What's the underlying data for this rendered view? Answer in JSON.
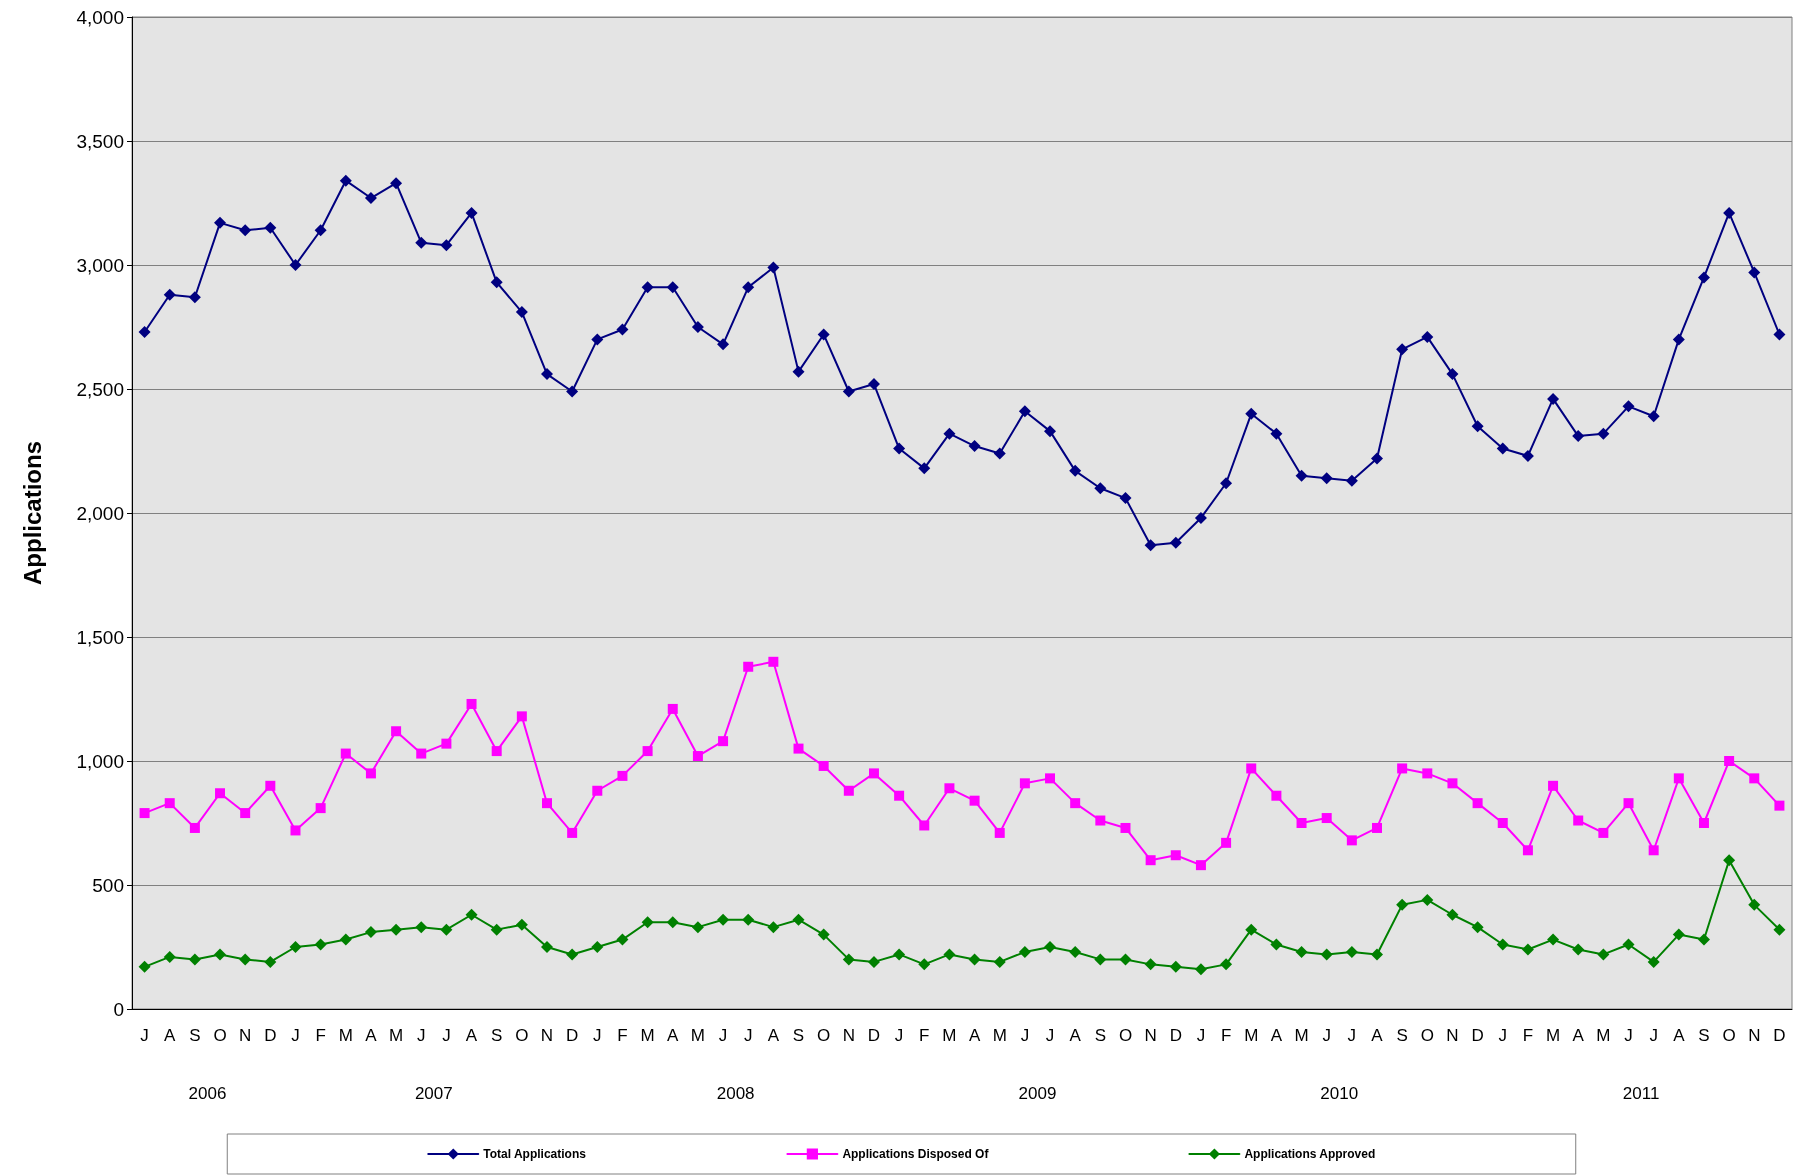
{
  "chart_data": {
    "type": "line",
    "ylabel": "Applications",
    "categories": [
      "J",
      "A",
      "S",
      "O",
      "N",
      "D",
      "J",
      "F",
      "M",
      "A",
      "M",
      "J",
      "J",
      "A",
      "S",
      "O",
      "N",
      "D",
      "J",
      "F",
      "M",
      "A",
      "M",
      "J",
      "J",
      "A",
      "S",
      "O",
      "N",
      "D",
      "J",
      "F",
      "M",
      "A",
      "M",
      "J",
      "J",
      "A",
      "S",
      "O",
      "N",
      "D",
      "J",
      "F",
      "M",
      "A",
      "M",
      "J",
      "J",
      "A",
      "S",
      "O",
      "N",
      "D",
      "J",
      "F",
      "M",
      "A",
      "M",
      "J",
      "J",
      "A",
      "S",
      "O",
      "N",
      "D"
    ],
    "annotations": [
      "2006",
      "2007",
      "2008",
      "2009",
      "2010",
      "2011"
    ],
    "series": [
      {
        "name": "Total Applications",
        "color": "#000080",
        "marker": "diamond",
        "values": [
          2730,
          2880,
          2870,
          3170,
          3140,
          3150,
          3000,
          3140,
          3340,
          3270,
          3330,
          3090,
          3080,
          3210,
          2930,
          2810,
          2560,
          2490,
          2700,
          2740,
          2910,
          2910,
          2750,
          2680,
          2910,
          2990,
          2570,
          2720,
          2490,
          2520,
          2260,
          2180,
          2320,
          2270,
          2240,
          2410,
          2330,
          2170,
          2100,
          2060,
          1870,
          1880,
          1980,
          2120,
          2400,
          2320,
          2150,
          2140,
          2130,
          2220,
          2660,
          2710,
          2560,
          2350,
          2260,
          2230,
          2460,
          2310,
          2320,
          2430,
          2390,
          2700,
          2950,
          3210,
          2970,
          2720
        ]
      },
      {
        "name": "Applications Disposed Of",
        "color": "#ff00ff",
        "marker": "square",
        "values": [
          790,
          830,
          730,
          870,
          790,
          900,
          720,
          810,
          1030,
          950,
          1120,
          1030,
          1070,
          1230,
          1040,
          1180,
          830,
          710,
          880,
          940,
          1040,
          1210,
          1020,
          1080,
          1380,
          1400,
          1050,
          980,
          880,
          950,
          860,
          740,
          890,
          840,
          710,
          910,
          930,
          830,
          760,
          730,
          600,
          620,
          580,
          670,
          970,
          860,
          750,
          770,
          680,
          730,
          970,
          950,
          910,
          830,
          750,
          640,
          900,
          760,
          710,
          830,
          640,
          930,
          750,
          1000,
          930,
          820
        ]
      },
      {
        "name": "Applications Approved",
        "color": "#008000",
        "marker": "diamond",
        "values": [
          170,
          210,
          200,
          220,
          200,
          190,
          250,
          260,
          280,
          310,
          320,
          330,
          320,
          380,
          320,
          340,
          250,
          220,
          250,
          280,
          350,
          350,
          330,
          360,
          360,
          330,
          360,
          300,
          200,
          190,
          220,
          180,
          220,
          200,
          190,
          230,
          250,
          230,
          200,
          200,
          180,
          170,
          160,
          180,
          320,
          260,
          230,
          220,
          230,
          220,
          420,
          440,
          380,
          330,
          260,
          240,
          280,
          240,
          220,
          260,
          190,
          300,
          280,
          600,
          420,
          320
        ]
      }
    ],
    "ylim": [
      0,
      4000
    ],
    "yticks": [
      0,
      500,
      {
        "value": 1000,
        "label": "1,000"
      },
      {
        "value": 1500,
        "label": "1,500"
      },
      {
        "value": 2000,
        "label": "2,000"
      },
      {
        "value": 2500,
        "label": "2,500"
      },
      {
        "value": 3000,
        "label": "3,000"
      },
      {
        "value": 3500,
        "label": "3,500"
      },
      {
        "value": 4000,
        "label": "4,000"
      }
    ],
    "grid": "y",
    "legend": "bottom",
    "line_style": "solid"
  }
}
